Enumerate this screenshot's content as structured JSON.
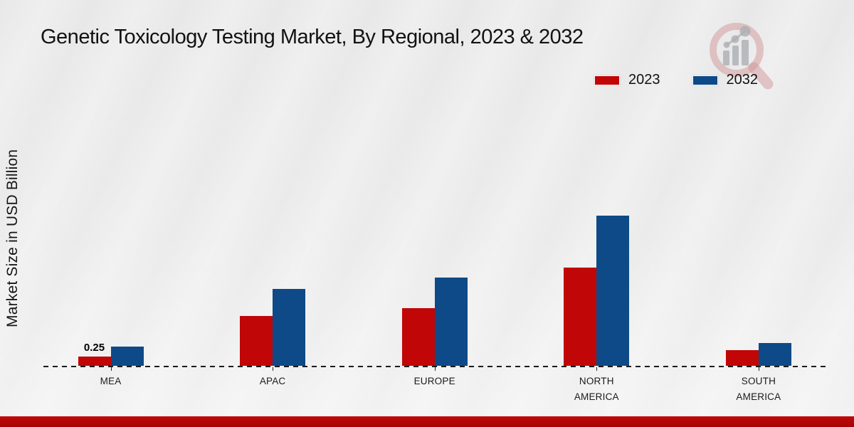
{
  "title": "Genetic Toxicology Testing Market, By Regional, 2023 & 2032",
  "y_axis_label": "Market Size in USD Billion",
  "legend": {
    "items": [
      {
        "label": "2023",
        "color": "#c00606"
      },
      {
        "label": "2032",
        "color": "#0d4a87"
      }
    ]
  },
  "colors": {
    "series_2023": "#c00606",
    "series_2032": "#0d4a87",
    "footer_bar": "#b10505",
    "background": "#ebebeb",
    "text": "#121212"
  },
  "logo": {
    "name": "market-research-magnifier-logo"
  },
  "chart_data": {
    "type": "bar",
    "title": "Genetic Toxicology Testing Market, By Regional, 2023 & 2032",
    "xlabel": "",
    "ylabel": "Market Size in USD Billion",
    "categories": [
      "MEA",
      "APAC",
      "EUROPE",
      "NORTH AMERICA",
      "SOUTH AMERICA"
    ],
    "series": [
      {
        "name": "2023",
        "color": "#c00606",
        "values": [
          0.25,
          1.3,
          1.5,
          2.55,
          0.4
        ],
        "data_labels": [
          "0.25",
          "",
          "",
          "",
          ""
        ]
      },
      {
        "name": "2032",
        "color": "#0d4a87",
        "values": [
          0.5,
          2.0,
          2.3,
          3.9,
          0.6
        ],
        "data_labels": [
          "",
          "",
          "",
          "",
          ""
        ]
      }
    ],
    "ylim": [
      0,
      4.5
    ],
    "grid": false,
    "baseline_style": "dashed",
    "legend_position": "top-right",
    "units": "USD Billion"
  }
}
